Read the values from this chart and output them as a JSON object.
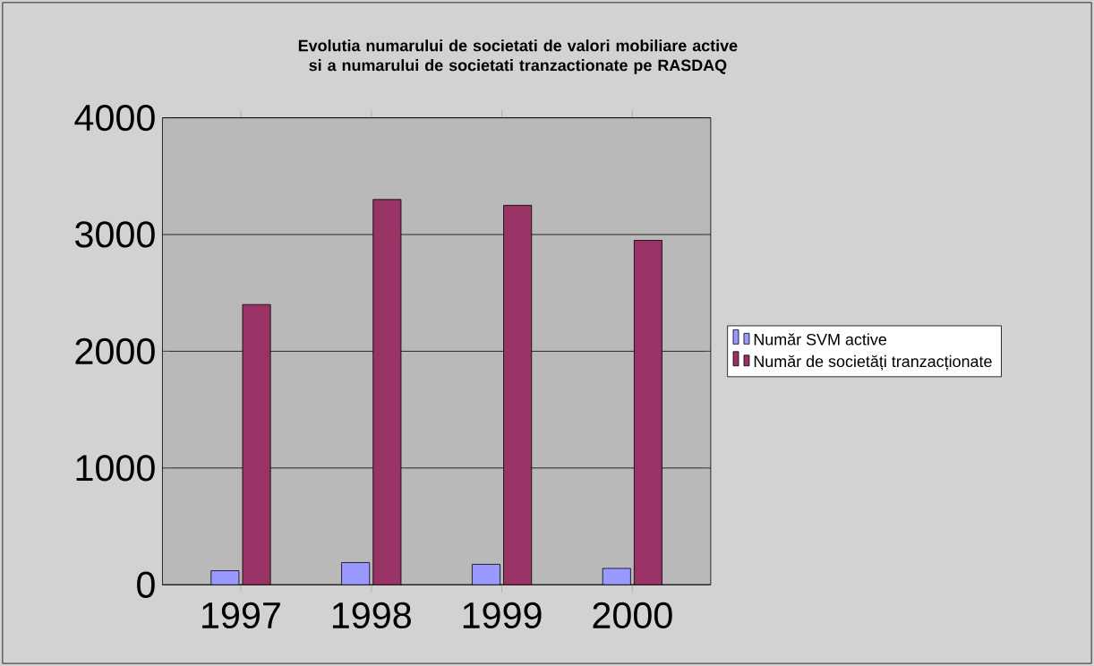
{
  "chart_data": {
    "type": "bar",
    "title": "Evolutia numarului de societati de valori mobiliare active si a numarului de societati tranzactionate pe RASDAQ",
    "categories": [
      "1997",
      "1998",
      "1999",
      "2000"
    ],
    "series": [
      {
        "name": "Număr SVM active",
        "color": "#9999ff",
        "values": [
          120,
          190,
          175,
          140
        ]
      },
      {
        "name": "Număr de societăți tranzacționate",
        "color": "#993366",
        "values": [
          2400,
          3300,
          3250,
          2950
        ]
      }
    ],
    "ylim": [
      0,
      4000
    ],
    "yticks": [
      0,
      1000,
      2000,
      3000,
      4000
    ],
    "grid": "y",
    "legend": "right"
  }
}
